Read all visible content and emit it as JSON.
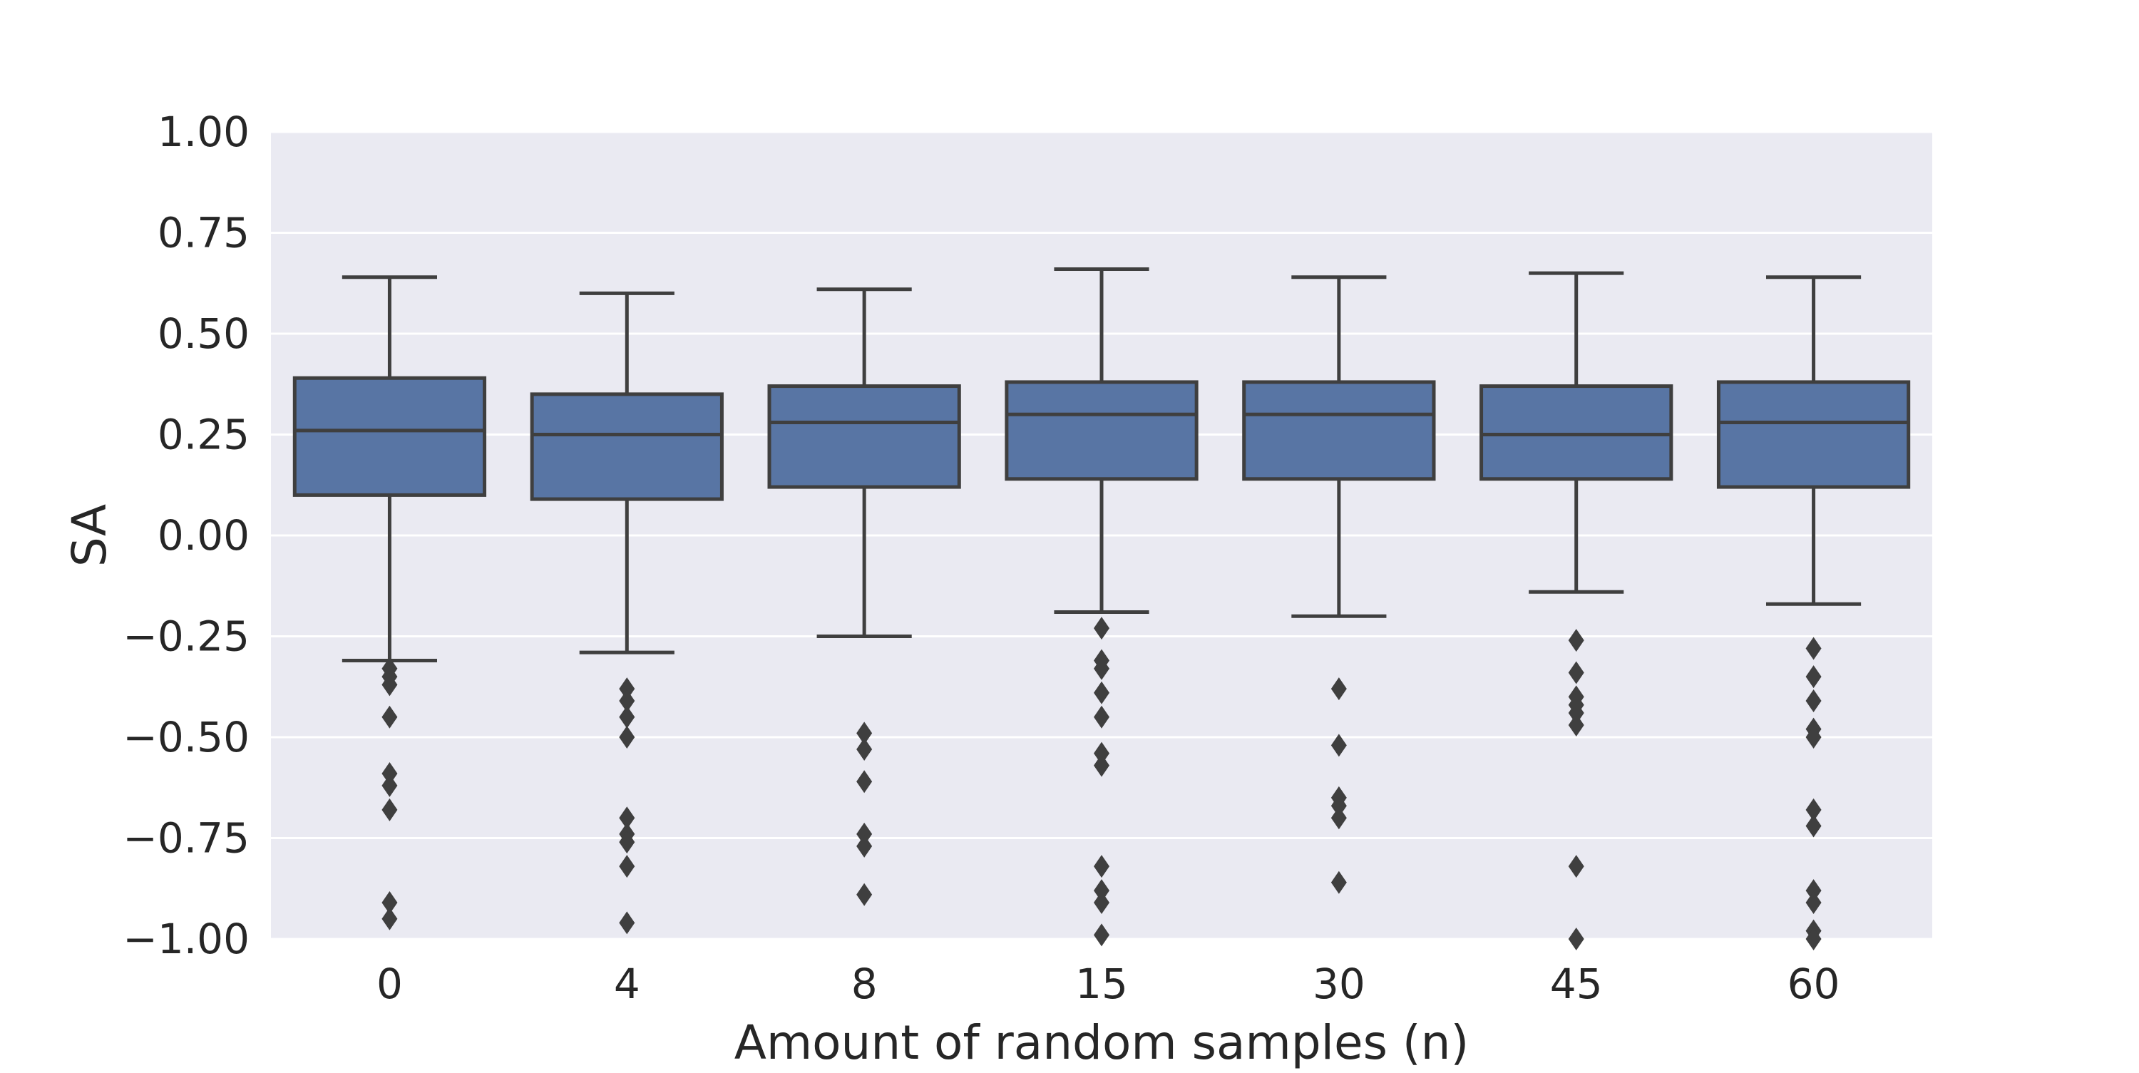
{
  "chart_data": {
    "type": "box",
    "xlabel": "Amount of random samples (n)",
    "ylabel": "SA",
    "ylim": [
      -1.0,
      1.0
    ],
    "yticks": [
      "1.00",
      "0.75",
      "0.50",
      "0.25",
      "0.00",
      "−0.25",
      "−0.50",
      "−0.75",
      "−1.00"
    ],
    "ytick_values": [
      1.0,
      0.75,
      0.5,
      0.25,
      0.0,
      -0.25,
      -0.5,
      -0.75,
      -1.0
    ],
    "categories": [
      "0",
      "4",
      "8",
      "15",
      "30",
      "45",
      "60"
    ],
    "grid": true,
    "style": {
      "background": "#eaeaf2",
      "grid_color": "#ffffff",
      "box_fill": "#5875a4",
      "line_color": "#3f3f3f"
    },
    "boxes": [
      {
        "category": "0",
        "whisker_low": -0.31,
        "q1": 0.1,
        "median": 0.26,
        "q3": 0.39,
        "whisker_high": 0.64,
        "outliers": [
          -0.33,
          -0.35,
          -0.37,
          -0.45,
          -0.59,
          -0.62,
          -0.68,
          -0.91,
          -0.95
        ]
      },
      {
        "category": "4",
        "whisker_low": -0.29,
        "q1": 0.09,
        "median": 0.25,
        "q3": 0.35,
        "whisker_high": 0.6,
        "outliers": [
          -0.38,
          -0.41,
          -0.45,
          -0.5,
          -0.7,
          -0.74,
          -0.76,
          -0.82,
          -0.96
        ]
      },
      {
        "category": "8",
        "whisker_low": -0.25,
        "q1": 0.12,
        "median": 0.28,
        "q3": 0.37,
        "whisker_high": 0.61,
        "outliers": [
          -0.49,
          -0.53,
          -0.61,
          -0.74,
          -0.77,
          -0.89
        ]
      },
      {
        "category": "15",
        "whisker_low": -0.19,
        "q1": 0.14,
        "median": 0.3,
        "q3": 0.38,
        "whisker_high": 0.66,
        "outliers": [
          -0.23,
          -0.31,
          -0.33,
          -0.39,
          -0.45,
          -0.54,
          -0.57,
          -0.82,
          -0.88,
          -0.91,
          -0.99
        ]
      },
      {
        "category": "30",
        "whisker_low": -0.2,
        "q1": 0.14,
        "median": 0.3,
        "q3": 0.38,
        "whisker_high": 0.64,
        "outliers": [
          -0.38,
          -0.52,
          -0.65,
          -0.67,
          -0.7,
          -0.86
        ]
      },
      {
        "category": "45",
        "whisker_low": -0.14,
        "q1": 0.14,
        "median": 0.25,
        "q3": 0.37,
        "whisker_high": 0.65,
        "outliers": [
          -0.26,
          -0.34,
          -0.4,
          -0.42,
          -0.44,
          -0.47,
          -0.82,
          -1.0
        ]
      },
      {
        "category": "60",
        "whisker_low": -0.17,
        "q1": 0.12,
        "median": 0.28,
        "q3": 0.38,
        "whisker_high": 0.64,
        "outliers": [
          -0.28,
          -0.35,
          -0.41,
          -0.48,
          -0.5,
          -0.68,
          -0.72,
          -0.88,
          -0.91,
          -0.98,
          -1.0
        ]
      }
    ]
  }
}
